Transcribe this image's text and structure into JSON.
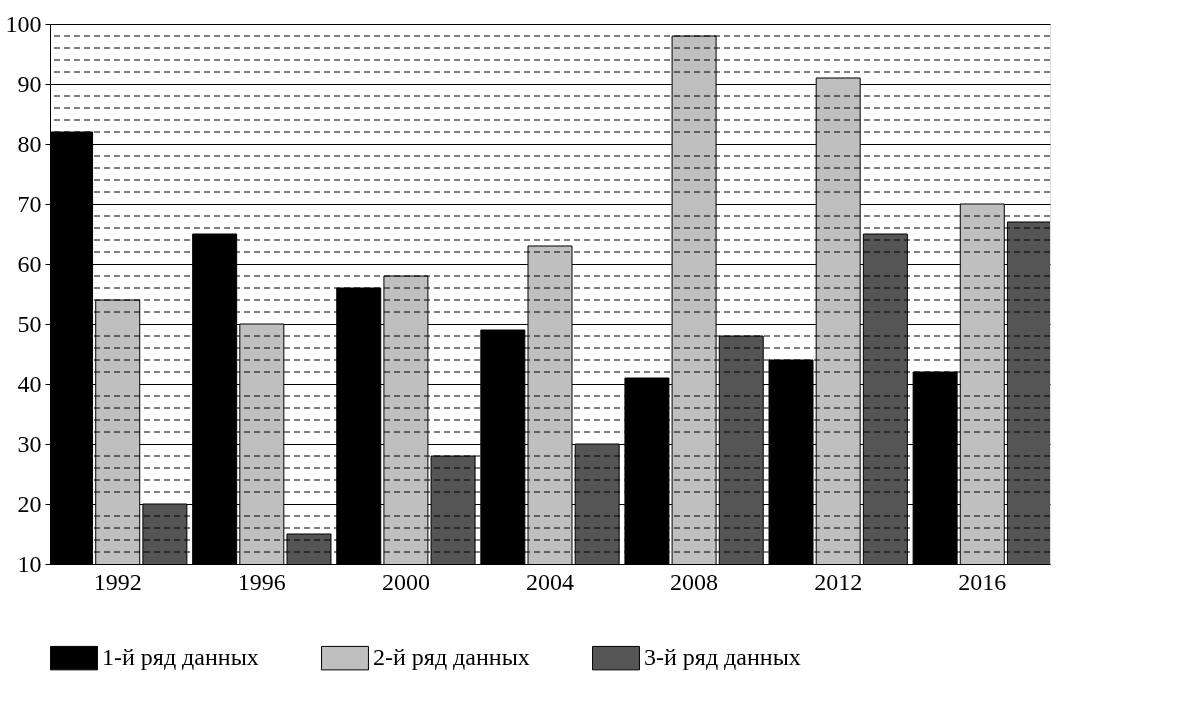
{
  "chart_data": {
    "type": "bar",
    "categories": [
      "1992",
      "1996",
      "2000",
      "2004",
      "2008",
      "2012",
      "2016"
    ],
    "series": [
      {
        "name": "1-й ряд данных",
        "color": "#000000",
        "values": [
          82,
          65,
          56,
          49,
          41,
          44,
          42
        ]
      },
      {
        "name": "2-й ряд данных",
        "color": "#bfbfbf",
        "values": [
          54,
          50,
          58,
          63,
          98,
          91,
          70
        ]
      },
      {
        "name": "3-й ряд данных",
        "color": "#555555",
        "values": [
          20,
          15,
          28,
          30,
          48,
          65,
          67
        ]
      }
    ],
    "ylim": [
      10,
      100
    ],
    "yticks": [
      10,
      20,
      30,
      40,
      50,
      60,
      70,
      80,
      90,
      100
    ],
    "grid": "y",
    "legend": "bottom"
  }
}
